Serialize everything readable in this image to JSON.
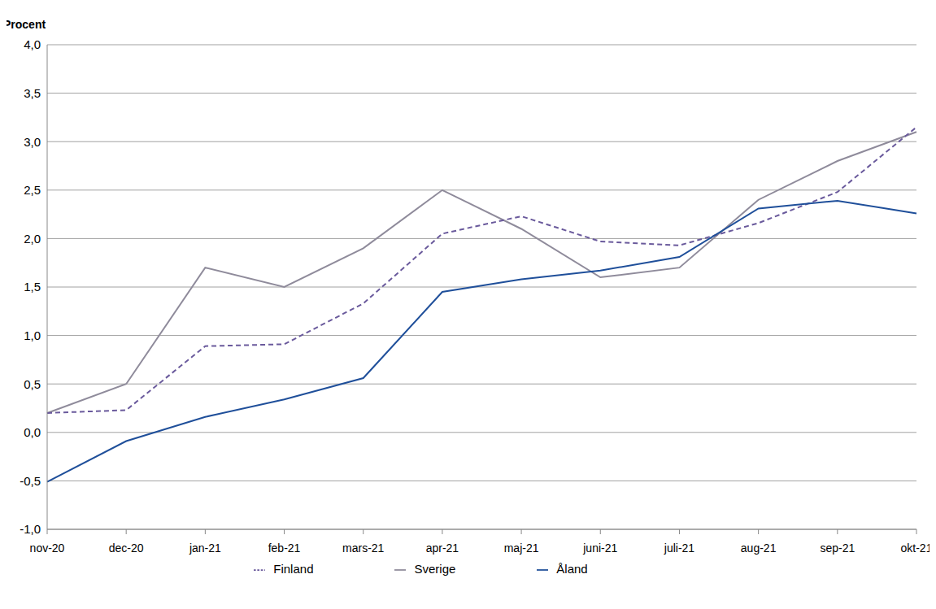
{
  "chart_data": {
    "type": "line",
    "y_label": "Procent",
    "categories": [
      "nov-20",
      "dec-20",
      "jan-21",
      "feb-21",
      "mars-21",
      "apr-21",
      "maj-21",
      "juni-21",
      "juli-21",
      "aug-21",
      "sep-21",
      "okt-21"
    ],
    "series": [
      {
        "name": "Sverige",
        "color": "#8f8b9b",
        "line_style": "solid",
        "marker": "none",
        "values": [
          0.2,
          0.5,
          1.7,
          1.5,
          1.9,
          2.5,
          2.1,
          1.6,
          1.7,
          2.4,
          2.8,
          3.1
        ]
      },
      {
        "name": "Finland",
        "color": "#6a5a9c",
        "line_style": "dashed",
        "marker": "none",
        "values": [
          0.2,
          0.23,
          0.89,
          0.91,
          1.33,
          2.05,
          2.23,
          1.97,
          1.93,
          2.16,
          2.48,
          3.15
        ]
      },
      {
        "name": "Åland",
        "color": "#1f4f9a",
        "line_style": "solid",
        "marker": "none",
        "values": [
          -0.51,
          -0.09,
          0.16,
          0.34,
          0.56,
          1.45,
          1.58,
          1.67,
          1.81,
          2.31,
          2.39,
          2.26
        ]
      }
    ],
    "ylim": [
      -1,
      4
    ],
    "yticks": [
      {
        "value": -1,
        "label": "-1,0"
      },
      {
        "value": -0.5,
        "label": "-0,5"
      },
      {
        "value": 0,
        "label": "0,0"
      },
      {
        "value": 0.5,
        "label": "0,5"
      },
      {
        "value": 1,
        "label": "1,0"
      },
      {
        "value": 1.5,
        "label": "1,5"
      },
      {
        "value": 2,
        "label": "2,0"
      },
      {
        "value": 2.5,
        "label": "2,5"
      },
      {
        "value": 3,
        "label": "3,0"
      },
      {
        "value": 3.5,
        "label": "3,5"
      },
      {
        "value": 4,
        "label": "4,0"
      }
    ],
    "grid": true,
    "legend": "bottom"
  }
}
